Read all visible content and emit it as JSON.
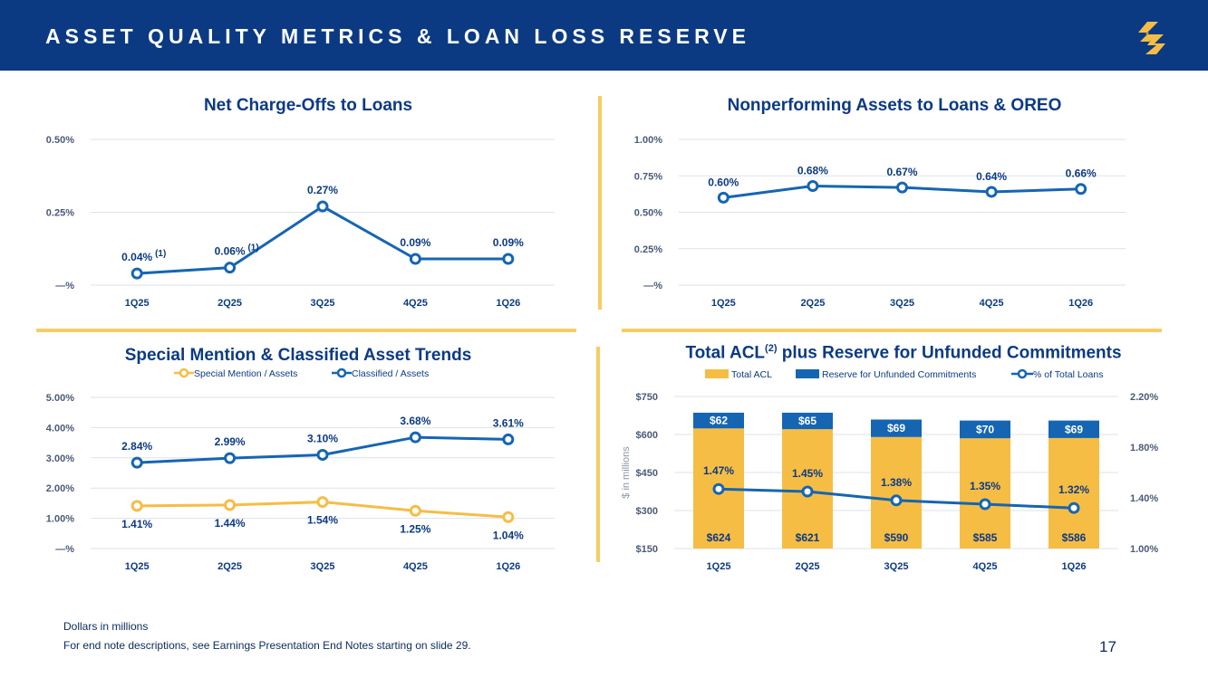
{
  "header": {
    "title": "ASSET QUALITY METRICS & LOAN LOSS RESERVE",
    "logo_icon": "stylized-s-logo"
  },
  "colors": {
    "navy": "#0b3a83",
    "blue": "#1565b3",
    "gold": "#f6bd45",
    "separator": "#f6cd63",
    "grid": "#dde2ea"
  },
  "footer": {
    "note1": "Dollars in millions",
    "note2": "For end note descriptions, see Earnings Presentation End Notes starting on slide 29.",
    "page": "17"
  },
  "chart_data": [
    {
      "id": "nco",
      "type": "line",
      "title": "Net Charge-Offs to Loans",
      "categories": [
        "1Q25",
        "2Q25",
        "3Q25",
        "4Q25",
        "1Q26"
      ],
      "series": [
        {
          "values": [
            0.04,
            0.06,
            0.27,
            0.09,
            0.09
          ],
          "labels": [
            "0.04%",
            "0.06%",
            "0.27%",
            "0.09%",
            "0.09%"
          ],
          "footnotes": [
            "(1)",
            "(1)",
            "",
            "",
            ""
          ]
        }
      ],
      "ylim": [
        0,
        0.5
      ],
      "yticks": [
        "—%",
        "0.25%",
        "0.50%"
      ],
      "grid": true
    },
    {
      "id": "npa",
      "type": "line",
      "title": "Nonperforming Assets to Loans & OREO",
      "categories": [
        "1Q25",
        "2Q25",
        "3Q25",
        "4Q25",
        "1Q26"
      ],
      "series": [
        {
          "values": [
            0.6,
            0.68,
            0.67,
            0.64,
            0.66
          ],
          "labels": [
            "0.60%",
            "0.68%",
            "0.67%",
            "0.64%",
            "0.66%"
          ]
        }
      ],
      "ylim": [
        0,
        1.0
      ],
      "yticks": [
        "—%",
        "0.25%",
        "0.50%",
        "0.75%",
        "1.00%"
      ],
      "grid": true
    },
    {
      "id": "smc",
      "type": "line",
      "title": "Special Mention & Classified Asset Trends",
      "categories": [
        "1Q25",
        "2Q25",
        "3Q25",
        "4Q25",
        "1Q26"
      ],
      "series": [
        {
          "name": "Special Mention / Assets",
          "values": [
            1.41,
            1.44,
            1.54,
            1.25,
            1.04
          ],
          "labels": [
            "1.41%",
            "1.44%",
            "1.54%",
            "1.25%",
            "1.04%"
          ]
        },
        {
          "name": "Classified / Assets",
          "values": [
            2.84,
            2.99,
            3.1,
            3.68,
            3.61
          ],
          "labels": [
            "2.84%",
            "2.99%",
            "3.10%",
            "3.68%",
            "3.61%"
          ]
        }
      ],
      "ylim": [
        0,
        5.0
      ],
      "yticks": [
        "—%",
        "1.00%",
        "2.00%",
        "3.00%",
        "4.00%",
        "5.00%"
      ],
      "legend": "top-center",
      "grid": true
    },
    {
      "id": "acl",
      "type": "bar",
      "title": "Total ACL",
      "title_sup": "(2)",
      "title_rest": " plus Reserve for Unfunded Commitments",
      "categories": [
        "1Q25",
        "2Q25",
        "3Q25",
        "4Q25",
        "1Q26"
      ],
      "series": [
        {
          "name": "Total ACL",
          "values": [
            624,
            621,
            590,
            585,
            586
          ],
          "labels": [
            "$624",
            "$621",
            "$590",
            "$585",
            "$586"
          ]
        },
        {
          "name": "Reserve for Unfunded Commitments",
          "values": [
            62,
            65,
            69,
            70,
            69
          ],
          "labels": [
            "$62",
            "$65",
            "$69",
            "$70",
            "$69"
          ]
        },
        {
          "name": "% of Total Loans",
          "axis": "right",
          "values": [
            1.47,
            1.45,
            1.38,
            1.35,
            1.32
          ],
          "labels": [
            "1.47%",
            "1.45%",
            "1.38%",
            "1.35%",
            "1.32%"
          ]
        }
      ],
      "stacked": true,
      "ylim": [
        150,
        750
      ],
      "yticks": [
        "$150",
        "$300",
        "$450",
        "$600",
        "$750"
      ],
      "ylabel": "$ in millions",
      "y2lim": [
        1.0,
        2.2
      ],
      "y2ticks": [
        "1.00%",
        "1.40%",
        "1.80%",
        "2.20%"
      ],
      "legend": "top-center",
      "grid": true
    }
  ]
}
